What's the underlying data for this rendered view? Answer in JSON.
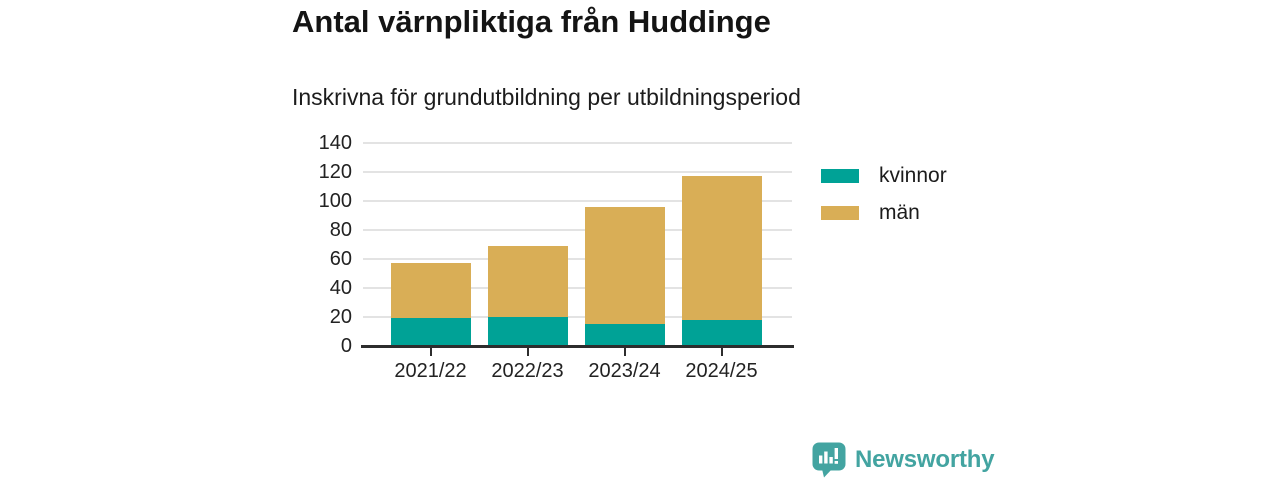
{
  "title": "Antal värnpliktiga från Huddinge",
  "subtitle": "Inskrivna för grundutbildning per utbildningsperiod",
  "chart_data": {
    "type": "bar",
    "stacked": true,
    "categories": [
      "2021/22",
      "2022/23",
      "2023/24",
      "2024/25"
    ],
    "series": [
      {
        "name": "kvinnor",
        "color": "#00a296",
        "values": [
          19,
          20,
          15,
          18
        ]
      },
      {
        "name": "män",
        "color": "#d9ae56",
        "values": [
          38,
          49,
          81,
          99
        ]
      }
    ],
    "totals": [
      57,
      69,
      96,
      117
    ],
    "xlabel": "",
    "ylabel": "",
    "ylim": [
      0,
      140
    ],
    "ytick_step": 20,
    "grid": "horizontal",
    "legend_position": "right"
  },
  "colors": {
    "axis": "#2d2d2d",
    "gridline": "#e3e3e3",
    "text": "#222222"
  },
  "branding": {
    "logo_text": "Newsworthy",
    "logo_color": "#43a4a1",
    "logo_icon": "bar-chart-speech-bubble"
  }
}
